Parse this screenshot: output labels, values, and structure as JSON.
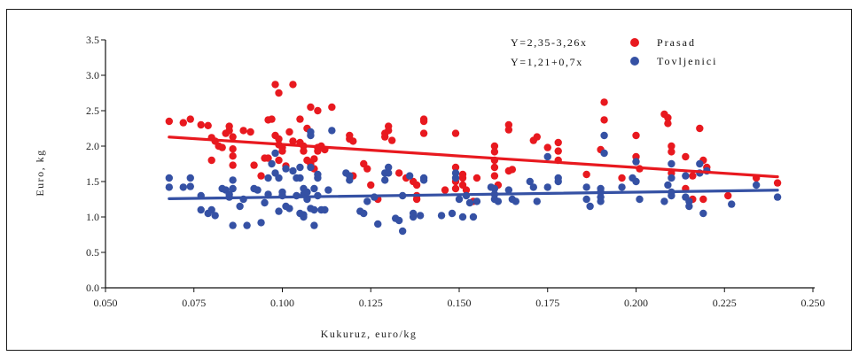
{
  "chart_data": {
    "type": "scatter",
    "title": "",
    "xlabel": "Kukuruz, euro/kg",
    "ylabel": "Euro, kg",
    "xlim": [
      0.05,
      0.25
    ],
    "ylim": [
      0.0,
      3.5
    ],
    "xticks": [
      "0.050",
      "0.075",
      "0.100",
      "0.125",
      "0.150",
      "0.175",
      "0.200",
      "0.225",
      "0.250"
    ],
    "xtick_values": [
      0.05,
      0.075,
      0.1,
      0.125,
      0.15,
      0.175,
      0.2,
      0.225,
      0.25
    ],
    "yticks": [
      "0.0",
      "0.5",
      "1.0",
      "1.5",
      "2.0",
      "2.5",
      "3.0",
      "3.5"
    ],
    "ytick_values": [
      0,
      0.5,
      1.0,
      1.5,
      2.0,
      2.5,
      3.0,
      3.5
    ],
    "grid": false,
    "legend_position": "top-right",
    "annotations": [
      "Y=2,35-3,26x",
      "Y=1,21+0,7x"
    ],
    "series": [
      {
        "name": "Prasad",
        "color": "#e8191f",
        "trend": {
          "intercept": 2.35,
          "slope": -3.26,
          "x_range": [
            0.068,
            0.24
          ]
        },
        "points": [
          [
            0.068,
            2.35
          ],
          [
            0.072,
            2.33
          ],
          [
            0.074,
            2.38
          ],
          [
            0.077,
            2.3
          ],
          [
            0.079,
            2.29
          ],
          [
            0.08,
            1.8
          ],
          [
            0.08,
            2.12
          ],
          [
            0.081,
            2.07
          ],
          [
            0.082,
            2.0
          ],
          [
            0.083,
            1.98
          ],
          [
            0.084,
            2.18
          ],
          [
            0.085,
            2.22
          ],
          [
            0.085,
            2.28
          ],
          [
            0.086,
            2.13
          ],
          [
            0.086,
            1.96
          ],
          [
            0.086,
            1.86
          ],
          [
            0.086,
            1.73
          ],
          [
            0.089,
            2.22
          ],
          [
            0.091,
            2.2
          ],
          [
            0.092,
            1.73
          ],
          [
            0.094,
            1.58
          ],
          [
            0.095,
            1.83
          ],
          [
            0.096,
            1.83
          ],
          [
            0.096,
            2.37
          ],
          [
            0.097,
            2.38
          ],
          [
            0.098,
            2.87
          ],
          [
            0.098,
            2.15
          ],
          [
            0.099,
            2.75
          ],
          [
            0.099,
            2.1
          ],
          [
            0.099,
            2.02
          ],
          [
            0.099,
            1.8
          ],
          [
            0.1,
            1.98
          ],
          [
            0.1,
            1.93
          ],
          [
            0.101,
            1.72
          ],
          [
            0.102,
            2.2
          ],
          [
            0.103,
            2.87
          ],
          [
            0.103,
            2.07
          ],
          [
            0.105,
            2.38
          ],
          [
            0.105,
            2.05
          ],
          [
            0.106,
            2.0
          ],
          [
            0.106,
            1.93
          ],
          [
            0.107,
            2.25
          ],
          [
            0.107,
            1.8
          ],
          [
            0.108,
            2.55
          ],
          [
            0.108,
            1.75
          ],
          [
            0.109,
            1.82
          ],
          [
            0.109,
            1.68
          ],
          [
            0.11,
            2.5
          ],
          [
            0.11,
            1.98
          ],
          [
            0.11,
            1.93
          ],
          [
            0.111,
            2.0
          ],
          [
            0.112,
            1.95
          ],
          [
            0.114,
            2.55
          ],
          [
            0.119,
            2.15
          ],
          [
            0.119,
            2.1
          ],
          [
            0.12,
            2.07
          ],
          [
            0.12,
            1.58
          ],
          [
            0.123,
            1.75
          ],
          [
            0.124,
            1.68
          ],
          [
            0.125,
            1.45
          ],
          [
            0.127,
            1.25
          ],
          [
            0.129,
            2.18
          ],
          [
            0.129,
            2.13
          ],
          [
            0.13,
            2.28
          ],
          [
            0.13,
            2.22
          ],
          [
            0.131,
            2.08
          ],
          [
            0.133,
            1.62
          ],
          [
            0.135,
            1.55
          ],
          [
            0.137,
            1.5
          ],
          [
            0.138,
            1.45
          ],
          [
            0.138,
            1.3
          ],
          [
            0.138,
            1.25
          ],
          [
            0.14,
            2.38
          ],
          [
            0.14,
            2.35
          ],
          [
            0.14,
            2.18
          ],
          [
            0.146,
            1.38
          ],
          [
            0.149,
            2.18
          ],
          [
            0.149,
            1.7
          ],
          [
            0.149,
            1.5
          ],
          [
            0.149,
            1.4
          ],
          [
            0.151,
            1.6
          ],
          [
            0.151,
            1.55
          ],
          [
            0.151,
            1.45
          ],
          [
            0.152,
            1.38
          ],
          [
            0.154,
            1.22
          ],
          [
            0.155,
            1.55
          ],
          [
            0.16,
            2.0
          ],
          [
            0.16,
            1.92
          ],
          [
            0.16,
            1.8
          ],
          [
            0.16,
            1.7
          ],
          [
            0.16,
            1.58
          ],
          [
            0.161,
            1.45
          ],
          [
            0.164,
            2.3
          ],
          [
            0.164,
            2.23
          ],
          [
            0.164,
            1.65
          ],
          [
            0.165,
            1.67
          ],
          [
            0.171,
            2.08
          ],
          [
            0.172,
            2.13
          ],
          [
            0.175,
            1.98
          ],
          [
            0.178,
            2.05
          ],
          [
            0.178,
            1.93
          ],
          [
            0.178,
            1.8
          ],
          [
            0.186,
            1.6
          ],
          [
            0.19,
            1.95
          ],
          [
            0.191,
            2.62
          ],
          [
            0.191,
            2.37
          ],
          [
            0.196,
            1.55
          ],
          [
            0.2,
            2.15
          ],
          [
            0.2,
            1.85
          ],
          [
            0.201,
            1.68
          ],
          [
            0.208,
            2.45
          ],
          [
            0.209,
            2.32
          ],
          [
            0.209,
            2.4
          ],
          [
            0.21,
            2.0
          ],
          [
            0.21,
            1.92
          ],
          [
            0.21,
            1.62
          ],
          [
            0.214,
            1.85
          ],
          [
            0.214,
            1.4
          ],
          [
            0.216,
            1.58
          ],
          [
            0.216,
            1.25
          ],
          [
            0.218,
            2.25
          ],
          [
            0.219,
            1.25
          ],
          [
            0.219,
            1.8
          ],
          [
            0.22,
            1.7
          ],
          [
            0.226,
            1.3
          ],
          [
            0.234,
            1.55
          ],
          [
            0.24,
            1.48
          ]
        ]
      },
      {
        "name": "Tovljenici",
        "color": "#3551a4",
        "trend": {
          "intercept": 1.21,
          "slope": 0.7,
          "x_range": [
            0.068,
            0.24
          ]
        },
        "points": [
          [
            0.068,
            1.55
          ],
          [
            0.068,
            1.42
          ],
          [
            0.072,
            1.42
          ],
          [
            0.074,
            1.55
          ],
          [
            0.074,
            1.43
          ],
          [
            0.077,
            1.3
          ],
          [
            0.077,
            1.1
          ],
          [
            0.079,
            1.05
          ],
          [
            0.08,
            1.1
          ],
          [
            0.081,
            1.02
          ],
          [
            0.083,
            1.4
          ],
          [
            0.084,
            1.38
          ],
          [
            0.085,
            1.28
          ],
          [
            0.085,
            1.32
          ],
          [
            0.086,
            1.52
          ],
          [
            0.086,
            1.4
          ],
          [
            0.086,
            0.88
          ],
          [
            0.088,
            1.15
          ],
          [
            0.089,
            1.25
          ],
          [
            0.09,
            0.88
          ],
          [
            0.092,
            1.4
          ],
          [
            0.093,
            1.38
          ],
          [
            0.094,
            0.92
          ],
          [
            0.095,
            1.2
          ],
          [
            0.096,
            1.55
          ],
          [
            0.096,
            1.32
          ],
          [
            0.097,
            1.75
          ],
          [
            0.098,
            1.9
          ],
          [
            0.098,
            1.62
          ],
          [
            0.099,
            1.55
          ],
          [
            0.099,
            1.08
          ],
          [
            0.1,
            1.35
          ],
          [
            0.1,
            1.3
          ],
          [
            0.101,
            1.15
          ],
          [
            0.101,
            1.68
          ],
          [
            0.102,
            1.12
          ],
          [
            0.103,
            1.65
          ],
          [
            0.104,
            1.3
          ],
          [
            0.104,
            1.55
          ],
          [
            0.105,
            1.7
          ],
          [
            0.105,
            1.55
          ],
          [
            0.105,
            1.05
          ],
          [
            0.106,
            1.4
          ],
          [
            0.106,
            1.32
          ],
          [
            0.106,
            1.03
          ],
          [
            0.106,
            1.0
          ],
          [
            0.107,
            1.35
          ],
          [
            0.107,
            1.25
          ],
          [
            0.108,
            2.2
          ],
          [
            0.108,
            2.15
          ],
          [
            0.108,
            1.7
          ],
          [
            0.108,
            1.12
          ],
          [
            0.109,
            1.1
          ],
          [
            0.109,
            1.4
          ],
          [
            0.109,
            0.88
          ],
          [
            0.11,
            1.6
          ],
          [
            0.11,
            1.55
          ],
          [
            0.11,
            1.3
          ],
          [
            0.111,
            1.1
          ],
          [
            0.112,
            1.1
          ],
          [
            0.113,
            1.38
          ],
          [
            0.114,
            2.22
          ],
          [
            0.118,
            1.62
          ],
          [
            0.119,
            1.58
          ],
          [
            0.119,
            1.52
          ],
          [
            0.122,
            1.08
          ],
          [
            0.123,
            1.05
          ],
          [
            0.124,
            1.22
          ],
          [
            0.126,
            1.28
          ],
          [
            0.127,
            0.9
          ],
          [
            0.129,
            1.52
          ],
          [
            0.129,
            1.62
          ],
          [
            0.13,
            1.7
          ],
          [
            0.13,
            1.62
          ],
          [
            0.132,
            0.98
          ],
          [
            0.133,
            0.95
          ],
          [
            0.134,
            1.3
          ],
          [
            0.134,
            0.8
          ],
          [
            0.136,
            1.58
          ],
          [
            0.137,
            1.05
          ],
          [
            0.137,
            1.0
          ],
          [
            0.139,
            1.02
          ],
          [
            0.14,
            1.55
          ],
          [
            0.14,
            1.52
          ],
          [
            0.145,
            1.02
          ],
          [
            0.148,
            1.05
          ],
          [
            0.149,
            1.55
          ],
          [
            0.149,
            1.62
          ],
          [
            0.15,
            1.25
          ],
          [
            0.151,
            1.0
          ],
          [
            0.152,
            1.3
          ],
          [
            0.153,
            1.2
          ],
          [
            0.154,
            1.0
          ],
          [
            0.155,
            1.22
          ],
          [
            0.159,
            1.42
          ],
          [
            0.16,
            1.4
          ],
          [
            0.16,
            1.32
          ],
          [
            0.16,
            1.25
          ],
          [
            0.161,
            1.22
          ],
          [
            0.164,
            1.38
          ],
          [
            0.165,
            1.25
          ],
          [
            0.166,
            1.22
          ],
          [
            0.17,
            1.5
          ],
          [
            0.171,
            1.42
          ],
          [
            0.172,
            1.22
          ],
          [
            0.175,
            1.42
          ],
          [
            0.175,
            1.85
          ],
          [
            0.178,
            1.55
          ],
          [
            0.178,
            1.5
          ],
          [
            0.186,
            1.42
          ],
          [
            0.186,
            1.25
          ],
          [
            0.187,
            1.15
          ],
          [
            0.19,
            1.4
          ],
          [
            0.19,
            1.35
          ],
          [
            0.19,
            1.28
          ],
          [
            0.19,
            1.22
          ],
          [
            0.191,
            2.15
          ],
          [
            0.191,
            1.9
          ],
          [
            0.196,
            1.42
          ],
          [
            0.199,
            1.55
          ],
          [
            0.2,
            1.5
          ],
          [
            0.2,
            1.78
          ],
          [
            0.201,
            1.25
          ],
          [
            0.208,
            1.22
          ],
          [
            0.209,
            1.45
          ],
          [
            0.21,
            1.75
          ],
          [
            0.21,
            1.55
          ],
          [
            0.21,
            1.35
          ],
          [
            0.21,
            1.3
          ],
          [
            0.214,
            1.58
          ],
          [
            0.214,
            1.28
          ],
          [
            0.215,
            1.22
          ],
          [
            0.215,
            1.15
          ],
          [
            0.218,
            1.75
          ],
          [
            0.218,
            1.62
          ],
          [
            0.219,
            1.05
          ],
          [
            0.22,
            1.65
          ],
          [
            0.227,
            1.18
          ],
          [
            0.234,
            1.45
          ],
          [
            0.24,
            1.28
          ]
        ]
      }
    ]
  }
}
